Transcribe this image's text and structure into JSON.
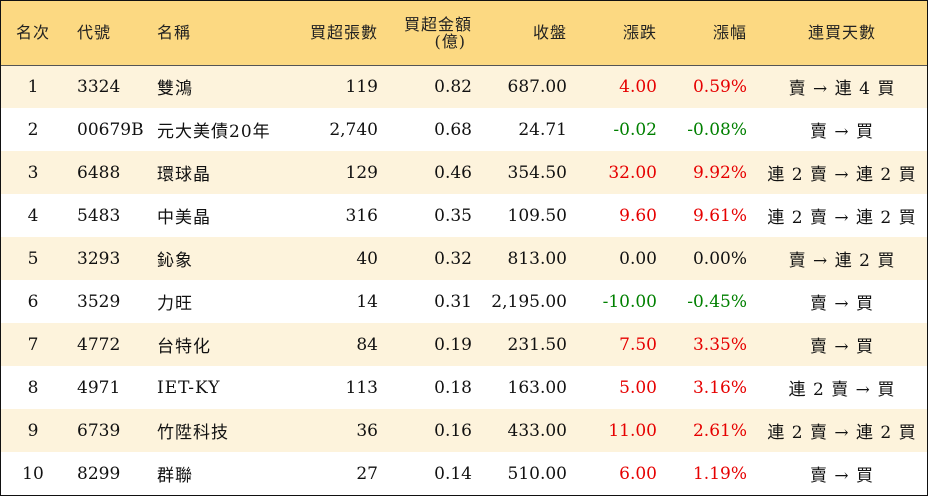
{
  "colors": {
    "header_bg": "#fcd982",
    "odd_row_bg": "#fdf3dc",
    "up": "#e60000",
    "down": "#008000",
    "flat": "#111111"
  },
  "headers": {
    "rank": "名次",
    "code": "代號",
    "name": "名稱",
    "net_buy_lots": "買超張數",
    "net_buy_amount_line1": "買超金額",
    "net_buy_amount_line2": "(億)",
    "close": "收盤",
    "change": "漲跌",
    "change_pct": "漲幅",
    "streak": "連買天數"
  },
  "rows": [
    {
      "rank": "1",
      "code": "3324",
      "name": "雙鴻",
      "lots": "119",
      "amount": "0.82",
      "close": "687.00",
      "change": "4.00",
      "pct": "0.59%",
      "trend": "up",
      "streak": "賣 → 連 4 買"
    },
    {
      "rank": "2",
      "code": "00679B",
      "name": "元大美債20年",
      "lots": "2,740",
      "amount": "0.68",
      "close": "24.71",
      "change": "-0.02",
      "pct": "-0.08%",
      "trend": "down",
      "streak": "賣 → 買"
    },
    {
      "rank": "3",
      "code": "6488",
      "name": "環球晶",
      "lots": "129",
      "amount": "0.46",
      "close": "354.50",
      "change": "32.00",
      "pct": "9.92%",
      "trend": "up",
      "streak": "連 2 賣 → 連 2 買"
    },
    {
      "rank": "4",
      "code": "5483",
      "name": "中美晶",
      "lots": "316",
      "amount": "0.35",
      "close": "109.50",
      "change": "9.60",
      "pct": "9.61%",
      "trend": "up",
      "streak": "連 2 賣 → 連 2 買"
    },
    {
      "rank": "5",
      "code": "3293",
      "name": "鈊象",
      "lots": "40",
      "amount": "0.32",
      "close": "813.00",
      "change": "0.00",
      "pct": "0.00%",
      "trend": "flat",
      "streak": "賣 → 連 2 買"
    },
    {
      "rank": "6",
      "code": "3529",
      "name": "力旺",
      "lots": "14",
      "amount": "0.31",
      "close": "2,195.00",
      "change": "-10.00",
      "pct": "-0.45%",
      "trend": "down",
      "streak": "賣 → 買"
    },
    {
      "rank": "7",
      "code": "4772",
      "name": "台特化",
      "lots": "84",
      "amount": "0.19",
      "close": "231.50",
      "change": "7.50",
      "pct": "3.35%",
      "trend": "up",
      "streak": "賣 → 買"
    },
    {
      "rank": "8",
      "code": "4971",
      "name": "IET-KY",
      "lots": "113",
      "amount": "0.18",
      "close": "163.00",
      "change": "5.00",
      "pct": "3.16%",
      "trend": "up",
      "streak": "連 2 賣 → 買"
    },
    {
      "rank": "9",
      "code": "6739",
      "name": "竹陞科技",
      "lots": "36",
      "amount": "0.16",
      "close": "433.00",
      "change": "11.00",
      "pct": "2.61%",
      "trend": "up",
      "streak": "連 2 賣 → 連 2 買"
    },
    {
      "rank": "10",
      "code": "8299",
      "name": "群聯",
      "lots": "27",
      "amount": "0.14",
      "close": "510.00",
      "change": "6.00",
      "pct": "1.19%",
      "trend": "up",
      "streak": "賣 → 買"
    }
  ]
}
